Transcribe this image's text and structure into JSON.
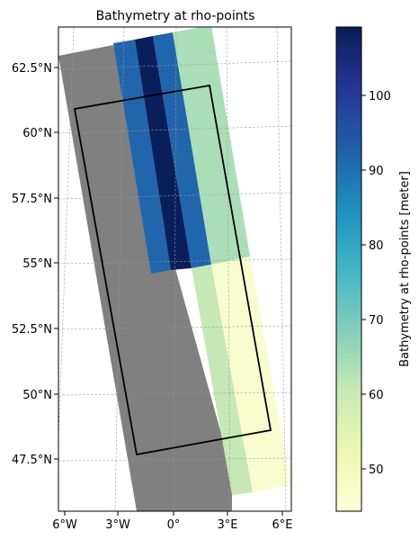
{
  "title": "Bathymetry at rho-points",
  "map": {
    "lat_ticks": [
      "62.5°N",
      "60°N",
      "57.5°N",
      "55°N",
      "52.5°N",
      "50°N",
      "47.5°N"
    ],
    "lon_ticks": [
      "6°W",
      "3°W",
      "0°",
      "3°E",
      "6°E"
    ],
    "land_color": "#808080",
    "gridlines": true,
    "domain_outline_color": "#000000"
  },
  "colorbar": {
    "label": "Bathymetry at rho-points [meter]",
    "ticks": [
      "100",
      "90",
      "80",
      "70",
      "60",
      "50"
    ],
    "colormap": "YlGnBu",
    "range": [
      44.5,
      109.5
    ]
  },
  "chart_data": {
    "type": "heatmap",
    "title": "Bathymetry at rho-points",
    "unit": "meter",
    "vmin": 44.5,
    "vmax": 109.5,
    "bands": [
      {
        "depth_m": 92
      },
      {
        "depth_m": 109
      },
      {
        "depth_m": 92
      },
      {
        "depth_m": 64
      },
      {
        "depth_m": 61
      },
      {
        "depth_m": 47
      }
    ]
  }
}
